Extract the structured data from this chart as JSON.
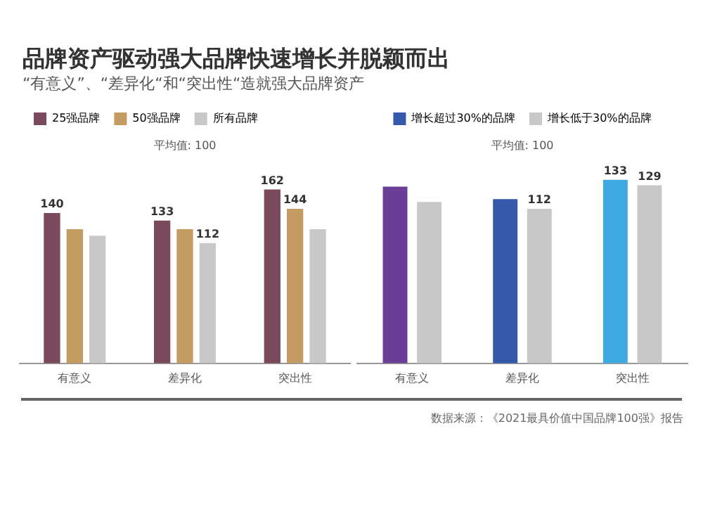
{
  "chart_data": [
    {
      "type": "bar",
      "title": "品牌资产驱动强大品牌快速增长并脱颖而出",
      "subtitle": "“有意义”、“差异化“和“突出性“造就强大品牌资产",
      "categories": [
        "有意义",
        "差异化",
        "突出性"
      ],
      "series": [
        {
          "name": "25强品牌",
          "color": "#7a4a5c",
          "values": [
            140,
            133,
            162
          ],
          "value_labels": [
            "140",
            "133",
            "162"
          ]
        },
        {
          "name": "50强品牌",
          "color": "#c49b62",
          "values": [
            125,
            125,
            144
          ],
          "value_labels": [
            null,
            null,
            "144"
          ]
        },
        {
          "name": "所有品牌",
          "color": "#c8c8c8",
          "values": [
            119,
            112,
            125
          ],
          "value_labels": [
            null,
            "112",
            null
          ]
        }
      ],
      "annotations": [
        "平均值: 100"
      ],
      "legend": "top left",
      "grid": false
    },
    {
      "type": "bar",
      "categories": [
        "有意义",
        "差异化",
        "突出性"
      ],
      "series": [
        {
          "name": "增长超过30%的品牌",
          "color": "#3459aa",
          "colors": [
            "#6a3d96",
            "#3459aa",
            "#3eaae2"
          ],
          "values": [
            128,
            119,
            133
          ],
          "value_labels": [
            null,
            null,
            "133"
          ]
        },
        {
          "name": "增长低于30%的品牌",
          "color": "#c8c8c8",
          "values": [
            117,
            112,
            129
          ],
          "value_labels": [
            null,
            "112",
            "129"
          ]
        }
      ],
      "annotations": [
        "平均值: 100",
        "数据来源：《2021最具价值中国品牌100强》报告"
      ],
      "legend": "top",
      "grid": false
    }
  ]
}
